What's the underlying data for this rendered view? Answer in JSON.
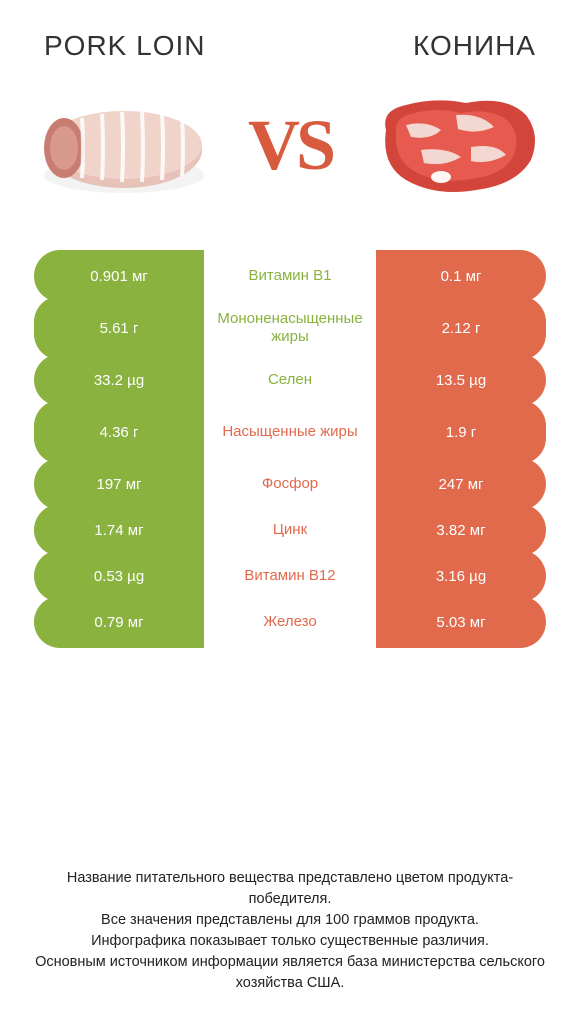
{
  "colors": {
    "green": "#8ab23f",
    "orange": "#e1694c",
    "text_dark": "#333333",
    "white": "#ffffff",
    "bg": "#ffffff"
  },
  "header": {
    "left_title": "Pork loin",
    "right_title": "Конина",
    "vs_label": "VS"
  },
  "rows": [
    {
      "left": "0.901 мг",
      "mid": "Витамин B1",
      "right": "0.1 мг",
      "winner": "left",
      "tall": false
    },
    {
      "left": "5.61 г",
      "mid": "Мононенасыщенные жиры",
      "right": "2.12 г",
      "winner": "left",
      "tall": true
    },
    {
      "left": "33.2 µg",
      "mid": "Селен",
      "right": "13.5 µg",
      "winner": "left",
      "tall": false
    },
    {
      "left": "4.36 г",
      "mid": "Насыщенные жиры",
      "right": "1.9 г",
      "winner": "right",
      "tall": true
    },
    {
      "left": "197 мг",
      "mid": "Фосфор",
      "right": "247 мг",
      "winner": "right",
      "tall": false
    },
    {
      "left": "1.74 мг",
      "mid": "Цинк",
      "right": "3.82 мг",
      "winner": "right",
      "tall": false
    },
    {
      "left": "0.53 µg",
      "mid": "Витамин B12",
      "right": "3.16 µg",
      "winner": "right",
      "tall": false
    },
    {
      "left": "0.79 мг",
      "mid": "Железо",
      "right": "5.03 мг",
      "winner": "right",
      "tall": false
    }
  ],
  "footnote": {
    "l1": "Название питательного вещества представлено цветом продукта-победителя.",
    "l2": "Все значения представлены для 100 граммов продукта.",
    "l3": "Инфографика показывает только существенные различия.",
    "l4": "Основным источником информации является база министерства сельского хозяйства США."
  }
}
